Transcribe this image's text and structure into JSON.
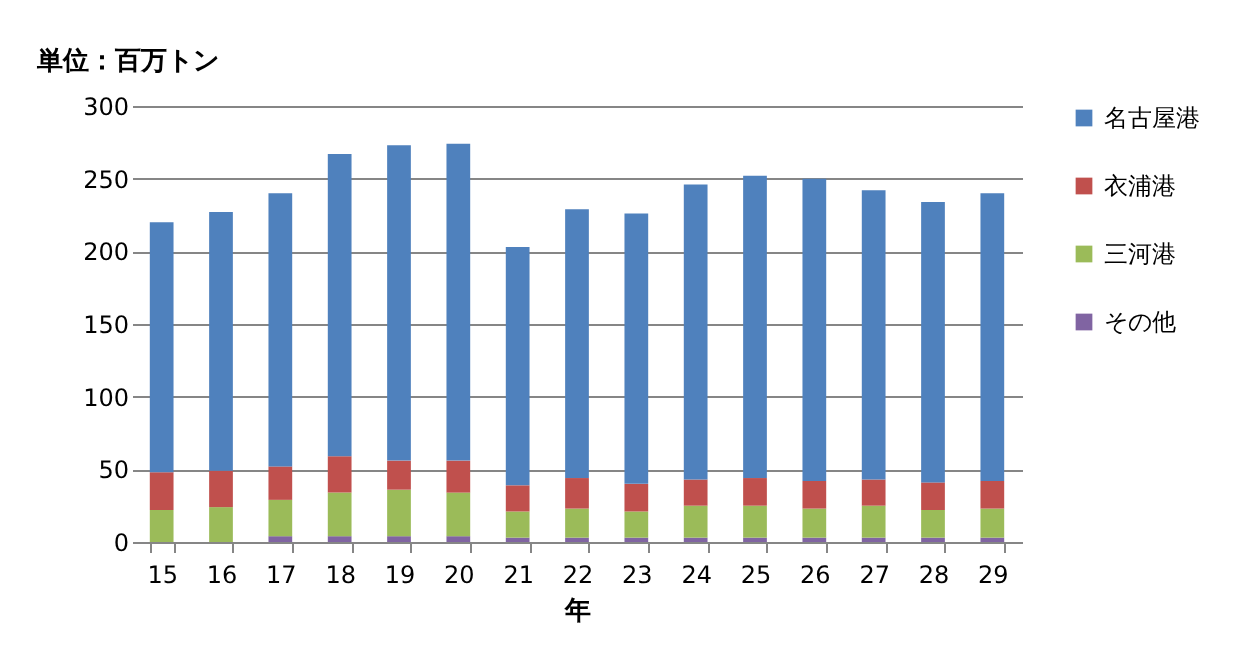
{
  "chart_data": {
    "type": "bar",
    "stacked": true,
    "ylabel": "単位：百万トン",
    "xlabel": "年",
    "categories": [
      "15",
      "16",
      "17",
      "18",
      "19",
      "20",
      "21",
      "22",
      "23",
      "24",
      "25",
      "26",
      "27",
      "28",
      "29"
    ],
    "series": [
      {
        "name": "その他",
        "color": "#8064a2",
        "values": [
          0,
          0,
          4,
          4,
          4,
          4,
          3,
          3,
          3,
          3,
          3,
          3,
          3,
          3,
          3
        ]
      },
      {
        "name": "三河港",
        "color": "#9bbb59",
        "values": [
          22,
          24,
          25,
          30,
          32,
          30,
          18,
          20,
          18,
          22,
          22,
          20,
          22,
          19,
          20
        ]
      },
      {
        "name": "衣浦港",
        "color": "#c0504d",
        "values": [
          26,
          25,
          23,
          25,
          20,
          22,
          18,
          21,
          19,
          18,
          19,
          19,
          18,
          19,
          19
        ]
      },
      {
        "name": "名古屋港",
        "color": "#4f81bd",
        "values": [
          172,
          178,
          188,
          208,
          217,
          218,
          164,
          185,
          186,
          203,
          208,
          208,
          199,
          193,
          198
        ]
      }
    ],
    "ylim": [
      0,
      300
    ],
    "yticks": [
      0,
      50,
      100,
      150,
      200,
      250,
      300
    ],
    "grid": "y",
    "legend": "right"
  }
}
